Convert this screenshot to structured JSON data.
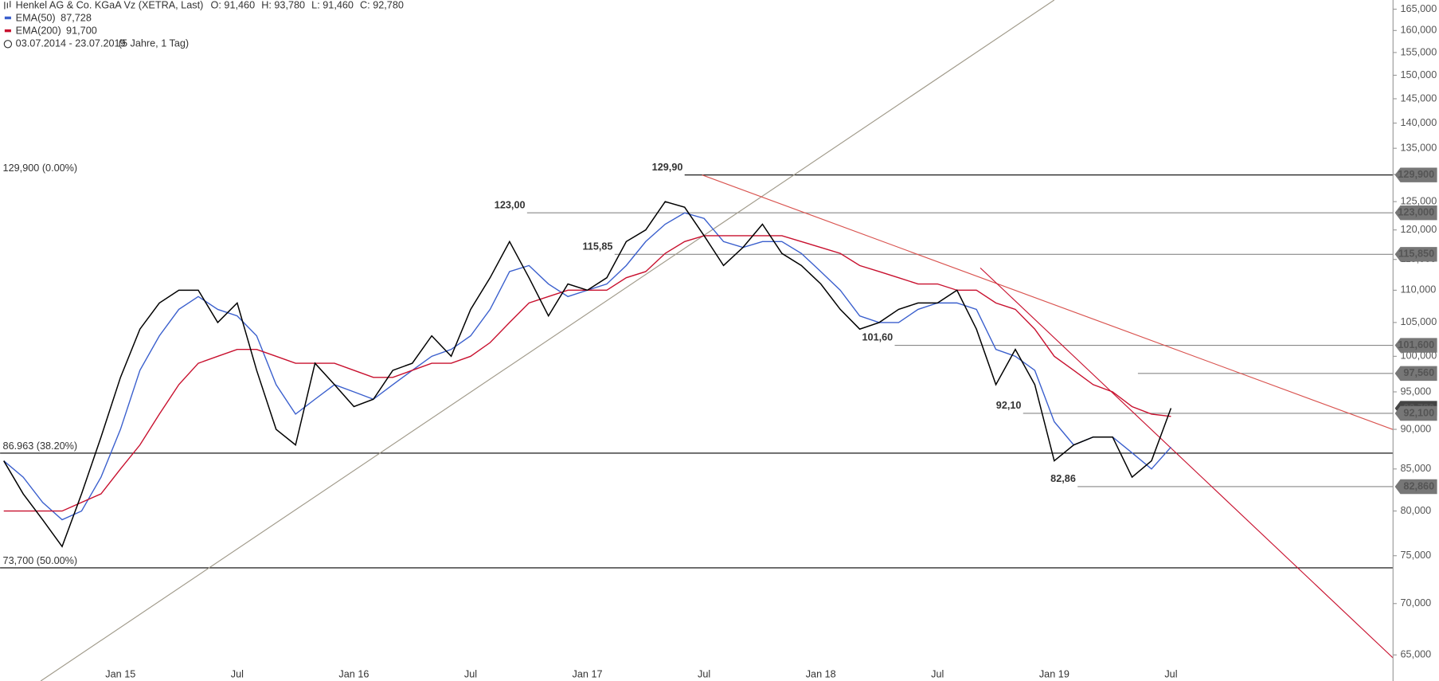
{
  "chart_data": {
    "type": "line",
    "title": "Henkel AG & Co. KGaA Vz (XETRA, Last)",
    "ohlc": [
      "O: 91,460",
      "H: 93,780",
      "L: 91,460",
      "C: 92,780"
    ],
    "period": "03.07.2014 - 23.07.2019",
    "period_note": "(5 Jahre, 1 Tag)",
    "log_scale": true,
    "color": "#000000",
    "categories": [
      null,
      null,
      null,
      null,
      null,
      null,
      "Jan 15",
      null,
      null,
      null,
      null,
      null,
      "Jul",
      null,
      null,
      null,
      null,
      null,
      "Jan 16",
      null,
      null,
      null,
      null,
      null,
      "Jul",
      null,
      null,
      null,
      null,
      null,
      "Jan 17",
      null,
      null,
      null,
      null,
      null,
      "Jul",
      null,
      null,
      null,
      null,
      null,
      "Jan 18",
      null,
      null,
      null,
      null,
      null,
      "Jul",
      null,
      null,
      null,
      null,
      null,
      "Jan 19",
      null,
      null,
      null,
      null,
      null,
      "Jul",
      null,
      null,
      null,
      null,
      null,
      null,
      null,
      null,
      null,
      null
    ],
    "values": [
      86,
      82,
      79,
      76,
      82,
      89,
      97,
      104,
      108,
      110,
      110,
      105,
      108,
      98,
      90,
      88,
      99,
      96,
      93,
      94,
      98,
      99,
      103,
      100,
      107,
      112,
      118,
      112,
      106,
      111,
      110,
      112,
      118,
      120,
      125,
      124,
      119,
      114,
      117,
      121,
      116,
      114,
      111,
      107,
      104,
      105,
      107,
      108,
      108,
      110,
      104,
      96,
      101,
      96,
      86,
      88,
      89,
      89,
      84,
      86,
      92.78,
      null,
      null,
      null,
      null,
      null,
      null,
      null,
      null,
      null,
      null
    ],
    "series": [
      {
        "name": "EMA(50)",
        "legend_value": "87,728",
        "color": "#3a5fcd",
        "values": [
          86,
          84,
          81,
          79,
          80,
          84,
          90,
          98,
          103,
          107,
          109,
          107,
          106,
          103,
          96,
          92,
          94,
          96,
          95,
          94,
          96,
          98,
          100,
          101,
          103,
          107,
          113,
          114,
          111,
          109,
          110,
          111,
          114,
          118,
          121,
          123,
          122,
          118,
          117,
          118,
          118,
          116,
          113,
          110,
          106,
          105,
          105,
          107,
          108,
          108,
          107,
          101,
          100,
          98,
          91,
          88,
          89,
          89,
          87,
          85,
          87.73,
          null,
          null,
          null,
          null,
          null,
          null,
          null,
          null,
          null,
          null
        ]
      },
      {
        "name": "EMA(200)",
        "legend_value": "91,700",
        "color": "#c8102e",
        "values": [
          80,
          80,
          80,
          80,
          81,
          82,
          85,
          88,
          92,
          96,
          99,
          100,
          101,
          101,
          100,
          99,
          99,
          99,
          98,
          97,
          97,
          98,
          99,
          99,
          100,
          102,
          105,
          108,
          109,
          110,
          110,
          110,
          112,
          113,
          116,
          118,
          119,
          119,
          119,
          119,
          119,
          118,
          117,
          116,
          114,
          113,
          112,
          111,
          111,
          110,
          110,
          108,
          107,
          104,
          100,
          98,
          96,
          95,
          93,
          92,
          91.7,
          null,
          null,
          null,
          null,
          null,
          null,
          null,
          null,
          null,
          null
        ]
      }
    ],
    "ylim": [
      62.6,
      167.2
    ],
    "yticks": [
      {
        "value": 65,
        "label": "65,000"
      },
      {
        "value": 70,
        "label": "70,000"
      },
      {
        "value": 75,
        "label": "75,000"
      },
      {
        "value": 80,
        "label": "80,000"
      },
      {
        "value": 85,
        "label": "85,000"
      },
      {
        "value": 90,
        "label": "90,000"
      },
      {
        "value": 95,
        "label": "95,000"
      },
      {
        "value": 100,
        "label": "100,000"
      },
      {
        "value": 105,
        "label": "105,000"
      },
      {
        "value": 110,
        "label": "110,000"
      },
      {
        "value": 115,
        "label": "115,000"
      },
      {
        "value": 120,
        "label": "120,000"
      },
      {
        "value": 125,
        "label": "125,000"
      },
      {
        "value": 130,
        "label": "130,000"
      },
      {
        "value": 135,
        "label": "135,000"
      },
      {
        "value": 140,
        "label": "140,000"
      },
      {
        "value": 145,
        "label": "145,000"
      },
      {
        "value": 150,
        "label": "150,000"
      },
      {
        "value": 155,
        "label": "155,000"
      },
      {
        "value": 160,
        "label": "160,000"
      },
      {
        "value": 165,
        "label": "165,000"
      }
    ],
    "levels": [
      {
        "value": 129.9,
        "label": "129,900 (0.00%)",
        "tag": "129,90",
        "start": 35,
        "axis_label": "129,900",
        "color": "#000000"
      },
      {
        "value": 86.963,
        "label": "86.963 (38.20%)",
        "color": "#000000"
      },
      {
        "value": 73.7,
        "label": "73,700 (50.00%)",
        "color": "#000000"
      },
      {
        "value": 123,
        "tag": "123,00",
        "start": 26.9,
        "axis_label": "123,000",
        "color": "#888888"
      },
      {
        "value": 115.85,
        "tag": "115,85",
        "start": 31.4,
        "axis_label": "115,850",
        "color": "#888888"
      },
      {
        "value": 101.6,
        "tag": "101,60",
        "start": 45.8,
        "axis_label": "101,600",
        "color": "#888888"
      },
      {
        "value": 97.56,
        "start": 58.3,
        "axis_label": "97,560",
        "color": "#888888"
      },
      {
        "value": 92.1,
        "tag": "92,10",
        "start": 52.4,
        "axis_label": "92,100",
        "color": "#888888"
      },
      {
        "value": 82.86,
        "tag": "82,86",
        "start": 55.2,
        "axis_label": "82,860",
        "color": "#888888"
      }
    ],
    "last_label": "92,780",
    "trendlines": [
      {
        "color": "#a09a8a",
        "points": [
          [
            1.9,
            62.6
          ],
          [
            54.0,
            167.2
          ]
        ]
      },
      {
        "color": "#d9534f",
        "points": [
          [
            35.9,
            129.9
          ],
          [
            71.6,
            89.8
          ]
        ]
      },
      {
        "color": "#c8102e",
        "points": [
          [
            50.2,
            113.6
          ],
          [
            71.6,
            64.4
          ]
        ]
      }
    ]
  }
}
